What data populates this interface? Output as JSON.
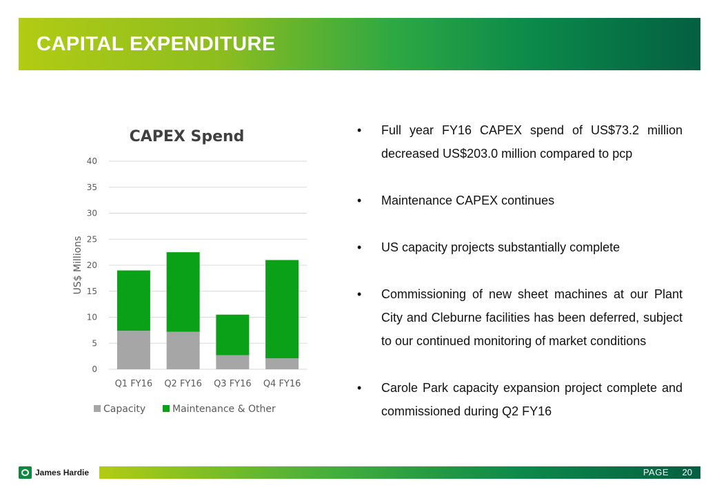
{
  "header": {
    "title": "CAPITAL EXPENDITURE"
  },
  "chart_data": {
    "type": "bar",
    "stacked": true,
    "title": "CAPEX Spend",
    "ylabel": "US$ Millions",
    "xlabel": "",
    "categories": [
      "Q1 FY16",
      "Q2 FY16",
      "Q3 FY16",
      "Q4 FY16"
    ],
    "series": [
      {
        "name": "Capacity",
        "color": "#a6a6a6",
        "values": [
          7.4,
          7.2,
          2.7,
          2.1
        ]
      },
      {
        "name": "Maintenance & Other",
        "color": "#0aa018",
        "values": [
          11.6,
          15.3,
          7.8,
          18.9
        ]
      }
    ],
    "ylim": [
      0,
      40
    ],
    "yticks": [
      "0",
      "5",
      "10",
      "15",
      "20",
      "25",
      "30",
      "35",
      "40"
    ],
    "grid": true,
    "legend": "bottom"
  },
  "bullets": [
    "Full year FY16 CAPEX spend of US$73.2 million decreased US$203.0 million compared to pcp",
    "Maintenance CAPEX continues",
    "US capacity projects substantially complete",
    "Commissioning of new sheet machines at our Plant City and Cleburne facilities has been deferred, subject to our continued monitoring of market conditions",
    "Carole Park capacity expansion project complete and commissioned during Q2 FY16"
  ],
  "footer": {
    "logo_text": "James Hardie",
    "page_label": "PAGE",
    "page_number": "20"
  }
}
